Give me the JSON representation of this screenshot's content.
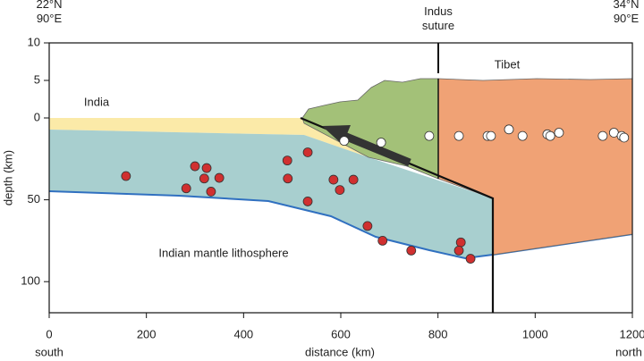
{
  "chart_data": {
    "type": "scatter",
    "x_label": "distance (km)",
    "y_label": "depth (km)",
    "xlim": [
      0,
      1200
    ],
    "xticks": [
      0,
      200,
      400,
      600,
      800,
      1000,
      1200
    ],
    "ylim": [
      -10,
      119
    ],
    "yticks": [
      {
        "value": -10,
        "label": "10"
      },
      {
        "value": -5,
        "label": "5"
      },
      0,
      50,
      100
    ],
    "x_end_labels": [
      "south",
      "north"
    ],
    "corner_labels": [
      "22°N\n90°E",
      "34°N\n90°E"
    ],
    "annotations": [
      "Indus\nsuture",
      "India",
      "Tibet",
      "Indian mantle lithosphere"
    ],
    "series": [
      {
        "color": "#d03030",
        "x": [
          158,
          300,
          324,
          319,
          350,
          282,
          333,
          490,
          532,
          491,
          585,
          626,
          598,
          532,
          655,
          686,
          745,
          847,
          843,
          867
        ],
        "values": [
          35.5,
          29.5,
          30.6,
          37,
          36.6,
          43,
          45,
          26,
          21,
          37,
          37.7,
          37.7,
          44,
          51,
          66,
          75,
          81,
          76,
          81,
          86
        ]
      },
      {
        "color": "#ffffff",
        "x": [
          607,
          683,
          782,
          843,
          902,
          909,
          946,
          974,
          1025,
          1031,
          1049,
          1139,
          1162,
          1178,
          1183
        ],
        "values": [
          14,
          15,
          11,
          11,
          11,
          11,
          7,
          11,
          10,
          11,
          9,
          11,
          9,
          11,
          12
        ]
      }
    ]
  }
}
